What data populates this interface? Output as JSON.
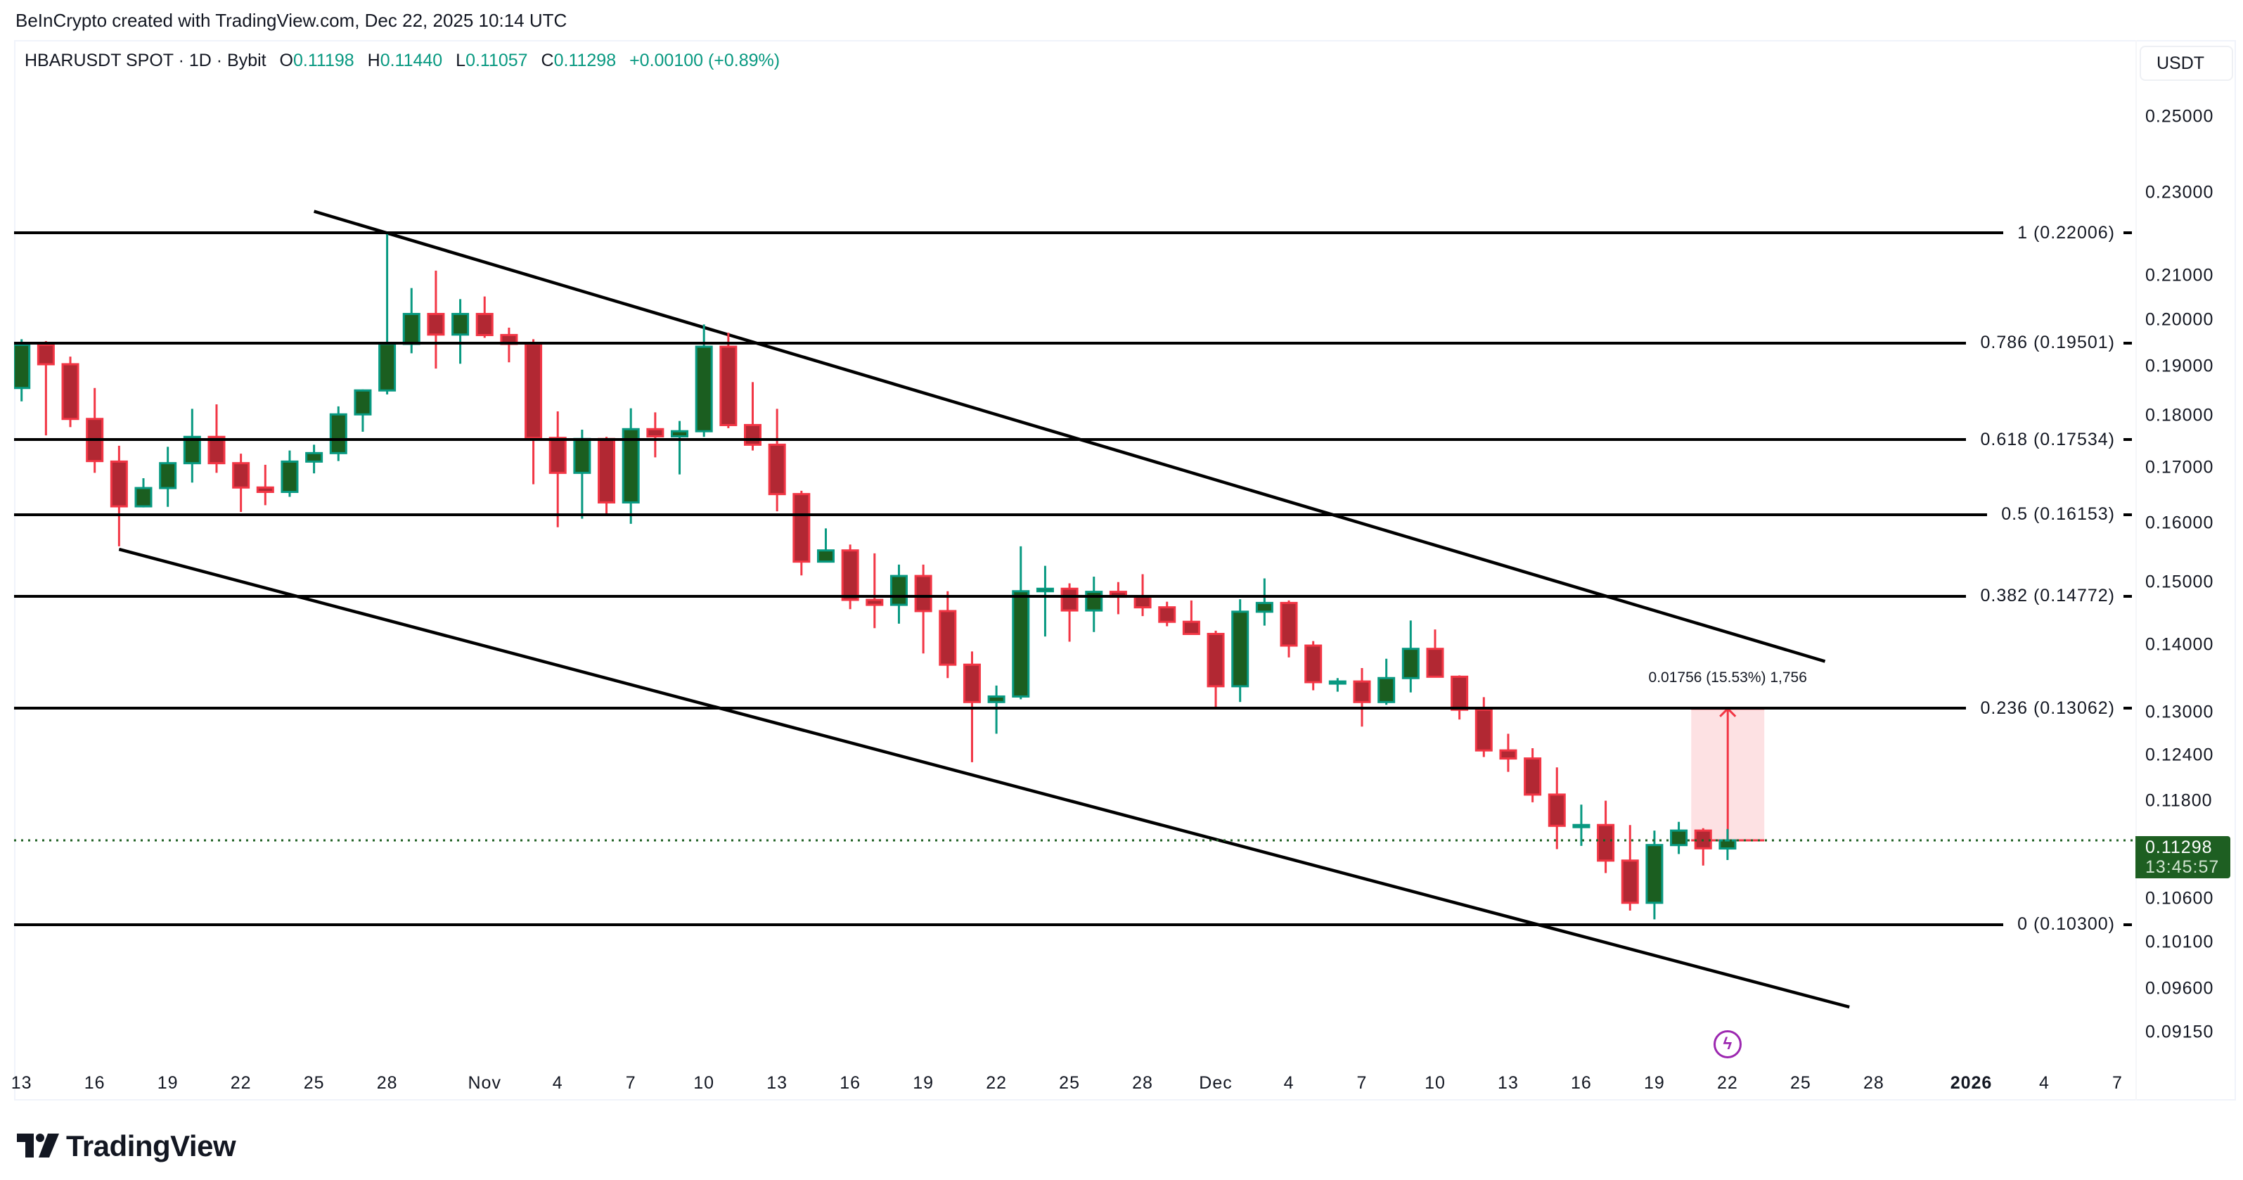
{
  "attribution": "BeInCrypto created with TradingView.com, Dec 22, 2025 10:14 UTC",
  "legend": {
    "symbol": "HBARUSDT SPOT · 1D · Bybit",
    "o_label": "O",
    "o": "0.11198",
    "h_label": "H",
    "h": "0.11440",
    "l_label": "L",
    "l": "0.11057",
    "c_label": "C",
    "c": "0.11298",
    "change": "+0.00100 (+0.89%)"
  },
  "currency_button": "USDT",
  "last_price": {
    "value": "0.11298",
    "countdown": "13:45:57"
  },
  "logo": {
    "text": "TradingView"
  },
  "colors": {
    "up_fill": "#1b5e20",
    "up_border": "#089981",
    "down_fill": "#b22833",
    "down_border": "#f23645",
    "last_price": "#1e5f22",
    "measure": "#f23645",
    "alert_icon": "#9c27b0"
  },
  "alert_icon": "lightning-bolt-icon",
  "chart_data": {
    "type": "candlestick",
    "title": "",
    "scale": "log",
    "grid": false,
    "ylim": [
      0.0895,
      0.262
    ],
    "xlim": [
      "2025-10-13",
      "2026-01-08"
    ],
    "candles_columns": [
      "date",
      "open",
      "high",
      "low",
      "close"
    ],
    "candles": [
      [
        "2025-10-13",
        0.1856,
        0.1958,
        0.1829,
        0.1946
      ],
      [
        "2025-10-14",
        0.1946,
        0.1954,
        0.1762,
        0.1905
      ],
      [
        "2025-10-15",
        0.1905,
        0.1921,
        0.1778,
        0.1794
      ],
      [
        "2025-10-16",
        0.1794,
        0.1856,
        0.1691,
        0.1713
      ],
      [
        "2025-10-17",
        0.1712,
        0.1742,
        0.156,
        0.163
      ],
      [
        "2025-10-18",
        0.163,
        0.1681,
        0.1628,
        0.1663
      ],
      [
        "2025-10-19",
        0.1663,
        0.174,
        0.1629,
        0.1709
      ],
      [
        "2025-10-20",
        0.1709,
        0.1814,
        0.1673,
        0.1759
      ],
      [
        "2025-10-21",
        0.1759,
        0.1823,
        0.1691,
        0.1709
      ],
      [
        "2025-10-22",
        0.1709,
        0.1727,
        0.162,
        0.1664
      ],
      [
        "2025-10-23",
        0.1664,
        0.1706,
        0.1632,
        0.1656
      ],
      [
        "2025-10-24",
        0.1656,
        0.1733,
        0.1647,
        0.1712
      ],
      [
        "2025-10-25",
        0.1712,
        0.1744,
        0.169,
        0.1728
      ],
      [
        "2025-10-26",
        0.1728,
        0.1819,
        0.1713,
        0.1803
      ],
      [
        "2025-10-27",
        0.1803,
        0.1853,
        0.1769,
        0.1851
      ],
      [
        "2025-10-28",
        0.1851,
        0.22,
        0.1843,
        0.1948
      ],
      [
        "2025-10-29",
        0.1948,
        0.2071,
        0.1928,
        0.2013
      ],
      [
        "2025-10-30",
        0.2013,
        0.2111,
        0.1896,
        0.1968
      ],
      [
        "2025-10-31",
        0.1968,
        0.2046,
        0.1906,
        0.2013
      ],
      [
        "2025-11-01",
        0.2013,
        0.2052,
        0.1961,
        0.1967
      ],
      [
        "2025-11-02",
        0.1967,
        0.1983,
        0.1909,
        0.1948
      ],
      [
        "2025-11-03",
        0.1948,
        0.1958,
        0.167,
        0.1757
      ],
      [
        "2025-11-04",
        0.1757,
        0.1809,
        0.1593,
        0.1691
      ],
      [
        "2025-11-05",
        0.1691,
        0.1773,
        0.1608,
        0.1755
      ],
      [
        "2025-11-06",
        0.1755,
        0.1759,
        0.1614,
        0.1637
      ],
      [
        "2025-11-07",
        0.1637,
        0.1815,
        0.1599,
        0.1774
      ],
      [
        "2025-11-08",
        0.1774,
        0.1807,
        0.172,
        0.176
      ],
      [
        "2025-11-09",
        0.176,
        0.179,
        0.1688,
        0.177
      ],
      [
        "2025-11-10",
        0.177,
        0.199,
        0.1759,
        0.1942
      ],
      [
        "2025-11-11",
        0.1942,
        0.1972,
        0.1776,
        0.1782
      ],
      [
        "2025-11-12",
        0.1782,
        0.1868,
        0.1733,
        0.1744
      ],
      [
        "2025-11-13",
        0.1744,
        0.1814,
        0.1621,
        0.1652
      ],
      [
        "2025-11-14",
        0.1652,
        0.1658,
        0.1511,
        0.1534
      ],
      [
        "2025-11-15",
        0.1534,
        0.1591,
        0.1534,
        0.1553
      ],
      [
        "2025-11-16",
        0.1553,
        0.1563,
        0.1456,
        0.1471
      ],
      [
        "2025-11-17",
        0.1471,
        0.1548,
        0.1426,
        0.1463
      ],
      [
        "2025-11-18",
        0.1463,
        0.1529,
        0.1433,
        0.151
      ],
      [
        "2025-11-19",
        0.151,
        0.1529,
        0.1387,
        0.1453
      ],
      [
        "2025-11-20",
        0.1453,
        0.1485,
        0.135,
        0.137
      ],
      [
        "2025-11-21",
        0.137,
        0.139,
        0.1231,
        0.1315
      ],
      [
        "2025-11-22",
        0.1315,
        0.1339,
        0.127,
        0.1323
      ],
      [
        "2025-11-23",
        0.1323,
        0.156,
        0.1319,
        0.1485
      ],
      [
        "2025-11-24",
        0.1485,
        0.1527,
        0.1413,
        0.1489
      ],
      [
        "2025-11-25",
        0.1489,
        0.1498,
        0.1405,
        0.1454
      ],
      [
        "2025-11-26",
        0.1454,
        0.1509,
        0.142,
        0.1484
      ],
      [
        "2025-11-27",
        0.1484,
        0.15,
        0.1448,
        0.1476
      ],
      [
        "2025-11-28",
        0.1476,
        0.1513,
        0.1445,
        0.1459
      ],
      [
        "2025-11-29",
        0.1459,
        0.1468,
        0.1429,
        0.1436
      ],
      [
        "2025-11-30",
        0.1436,
        0.147,
        0.1416,
        0.1417
      ],
      [
        "2025-12-01",
        0.1417,
        0.1422,
        0.1306,
        0.1338
      ],
      [
        "2025-12-02",
        0.1338,
        0.1472,
        0.1315,
        0.1452
      ],
      [
        "2025-12-03",
        0.1452,
        0.1506,
        0.143,
        0.1466
      ],
      [
        "2025-12-04",
        0.1466,
        0.147,
        0.1381,
        0.1399
      ],
      [
        "2025-12-05",
        0.1399,
        0.1406,
        0.1332,
        0.1344
      ],
      [
        "2025-12-06",
        0.1343,
        0.135,
        0.133,
        0.1345
      ],
      [
        "2025-12-07",
        0.1345,
        0.1365,
        0.128,
        0.1315
      ],
      [
        "2025-12-08",
        0.1315,
        0.1379,
        0.1311,
        0.135
      ],
      [
        "2025-12-09",
        0.135,
        0.1438,
        0.1329,
        0.1394
      ],
      [
        "2025-12-10",
        0.1394,
        0.1424,
        0.1351,
        0.1352
      ],
      [
        "2025-12-11",
        0.1352,
        0.1354,
        0.129,
        0.1304
      ],
      [
        "2025-12-12",
        0.1304,
        0.1322,
        0.1238,
        0.1247
      ],
      [
        "2025-12-13",
        0.1247,
        0.127,
        0.1218,
        0.1236
      ],
      [
        "2025-12-14",
        0.1236,
        0.125,
        0.1178,
        0.1188
      ],
      [
        "2025-12-15",
        0.1188,
        0.1224,
        0.1119,
        0.1148
      ],
      [
        "2025-12-16",
        0.1147,
        0.1175,
        0.1123,
        0.1149
      ],
      [
        "2025-12-17",
        0.1149,
        0.118,
        0.109,
        0.1105
      ],
      [
        "2025-12-18",
        0.1105,
        0.1149,
        0.1046,
        0.1055
      ],
      [
        "2025-12-19",
        0.1055,
        0.1142,
        0.1036,
        0.1124
      ],
      [
        "2025-12-20",
        0.1124,
        0.1153,
        0.1113,
        0.1142
      ],
      [
        "2025-12-21",
        0.1142,
        0.1145,
        0.1099,
        0.112
      ],
      [
        "2025-12-22",
        0.11198,
        0.1144,
        0.11057,
        0.11298
      ]
    ],
    "price_ticks": [
      "0.25000",
      "0.23000",
      "0.21000",
      "0.20000",
      "0.19000",
      "0.18000",
      "0.17000",
      "0.16000",
      "0.15000",
      "0.14000",
      "0.13000",
      "0.12400",
      "0.11800",
      "0.10600",
      "0.10100",
      "0.09600",
      "0.09150"
    ],
    "time_ticks": [
      {
        "label": "13",
        "date": "2025-10-13"
      },
      {
        "label": "16",
        "date": "2025-10-16"
      },
      {
        "label": "19",
        "date": "2025-10-19"
      },
      {
        "label": "22",
        "date": "2025-10-22"
      },
      {
        "label": "25",
        "date": "2025-10-25"
      },
      {
        "label": "28",
        "date": "2025-10-28"
      },
      {
        "label": "Nov",
        "date": "2025-11-01"
      },
      {
        "label": "4",
        "date": "2025-11-04"
      },
      {
        "label": "7",
        "date": "2025-11-07"
      },
      {
        "label": "10",
        "date": "2025-11-10"
      },
      {
        "label": "13",
        "date": "2025-11-13"
      },
      {
        "label": "16",
        "date": "2025-11-16"
      },
      {
        "label": "19",
        "date": "2025-11-19"
      },
      {
        "label": "22",
        "date": "2025-11-22"
      },
      {
        "label": "25",
        "date": "2025-11-25"
      },
      {
        "label": "28",
        "date": "2025-11-28"
      },
      {
        "label": "Dec",
        "date": "2025-12-01"
      },
      {
        "label": "4",
        "date": "2025-12-04"
      },
      {
        "label": "7",
        "date": "2025-12-07"
      },
      {
        "label": "10",
        "date": "2025-12-10"
      },
      {
        "label": "13",
        "date": "2025-12-13"
      },
      {
        "label": "16",
        "date": "2025-12-16"
      },
      {
        "label": "19",
        "date": "2025-12-19"
      },
      {
        "label": "22",
        "date": "2025-12-22"
      },
      {
        "label": "25",
        "date": "2025-12-25"
      },
      {
        "label": "28",
        "date": "2025-12-28"
      },
      {
        "label": "2026",
        "date": "2026-01-01",
        "bold": true
      },
      {
        "label": "4",
        "date": "2026-01-04"
      },
      {
        "label": "7",
        "date": "2026-01-07"
      }
    ],
    "fib_levels": [
      {
        "ratio": "1",
        "price": 0.22006,
        "label": "1 (0.22006)"
      },
      {
        "ratio": "0.786",
        "price": 0.19501,
        "label": "0.786 (0.19501)"
      },
      {
        "ratio": "0.618",
        "price": 0.17534,
        "label": "0.618 (0.17534)"
      },
      {
        "ratio": "0.5",
        "price": 0.16153,
        "label": "0.5 (0.16153)"
      },
      {
        "ratio": "0.382",
        "price": 0.14772,
        "label": "0.382 (0.14772)"
      },
      {
        "ratio": "0.236",
        "price": 0.13062,
        "label": "0.236 (0.13062)"
      },
      {
        "ratio": "0",
        "price": 0.103,
        "label": "0 (0.10300)"
      }
    ],
    "trendlines": [
      {
        "from": {
          "date": "2025-10-25",
          "price": 0.2253
        },
        "to": {
          "date": "2025-12-26",
          "price": 0.1375
        }
      },
      {
        "from": {
          "date": "2025-10-17",
          "price": 0.1555
        },
        "to": {
          "date": "2025-12-27",
          "price": 0.0941
        }
      }
    ],
    "last_price": 0.11298,
    "measure": {
      "from_date": "2025-12-21",
      "to_date": "2025-12-24",
      "from_price": 0.11298,
      "to_price": 0.13054,
      "label": "0.01756 (15.53%) 1,756"
    }
  }
}
